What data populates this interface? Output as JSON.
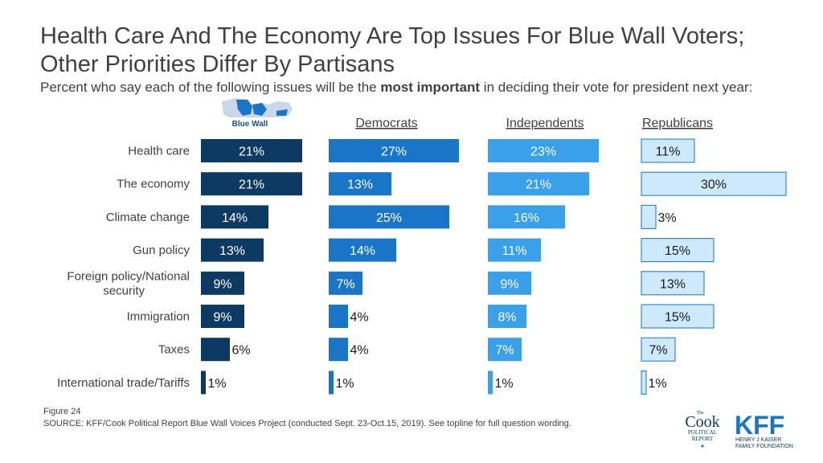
{
  "title": "Health Care And The Economy Are Top Issues For Blue Wall Voters; Other Priorities Differ By Partisans",
  "subtitle": {
    "before": "Percent who say each of the following issues will be the ",
    "emphasis": "most important",
    "after": " in deciding their vote for president next year:"
  },
  "logos": {
    "blue_wall": "Blue Wall",
    "cook_top": "The",
    "cook_main": "Cook",
    "cook_sub1": "POLITICAL",
    "cook_sub2": "REPORT",
    "kff_main": "KFF",
    "kff_sub1": "HENRY J KAISER",
    "kff_sub2": "FAMILY FOUNDATION"
  },
  "footer": {
    "figure": "Figure 24",
    "source": "SOURCE: KFF/Cook Political Report Blue Wall Voices Project (conducted Sept. 23-Oct.15, 2019). See topline for full question wording."
  },
  "colors": {
    "blue_wall": "#0d3a63",
    "democrats": "#1a75c9",
    "independents": "#3aa0ea",
    "republicans": "#cde9fb",
    "republicans_border": "#1a75c9",
    "label_text": "#404040"
  },
  "chart_data": {
    "type": "bar",
    "orientation": "horizontal",
    "categories": [
      "Health care",
      "The economy",
      "Climate change",
      "Gun policy",
      "Foreign policy/National security",
      "Immigration",
      "Taxes",
      "International trade/Tariffs"
    ],
    "series": [
      {
        "name": "Blue Wall",
        "values": [
          21,
          21,
          14,
          13,
          9,
          9,
          6,
          1
        ],
        "labels": [
          "21%",
          "21%",
          "14%",
          "13%",
          "9%",
          "9%",
          "6%",
          "1%"
        ]
      },
      {
        "name": "Democrats",
        "values": [
          27,
          13,
          25,
          14,
          7,
          4,
          4,
          1
        ],
        "labels": [
          "27%",
          "13%",
          "25%",
          "14%",
          "7%",
          "4%",
          "4%",
          "1%"
        ]
      },
      {
        "name": "Independents",
        "values": [
          23,
          21,
          16,
          11,
          9,
          8,
          7,
          1
        ],
        "labels": [
          "23%",
          "21%",
          "16%",
          "11%",
          "9%",
          "8%",
          "7%",
          "1%"
        ]
      },
      {
        "name": "Republicans",
        "values": [
          11,
          30,
          3,
          15,
          13,
          15,
          7,
          1
        ],
        "labels": [
          "11%",
          "30%",
          "3%",
          "15%",
          "13%",
          "15%",
          "7%",
          "1%"
        ]
      }
    ],
    "unit": "%"
  }
}
